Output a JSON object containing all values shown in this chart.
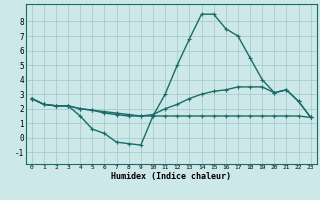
{
  "title": "",
  "xlabel": "Humidex (Indice chaleur)",
  "xlim": [
    -0.5,
    23.5
  ],
  "ylim": [
    -1.8,
    9.2
  ],
  "xticks": [
    0,
    1,
    2,
    3,
    4,
    5,
    6,
    7,
    8,
    9,
    10,
    11,
    12,
    13,
    14,
    15,
    16,
    17,
    18,
    19,
    20,
    21,
    22,
    23
  ],
  "yticks": [
    -1,
    0,
    1,
    2,
    3,
    4,
    5,
    6,
    7,
    8
  ],
  "background_color": "#cce8e8",
  "grid_color": "#aacccc",
  "line_color": "#1a6b6b",
  "line_width": 1.0,
  "marker": "+",
  "markersize": 3.5,
  "lines": [
    {
      "x": [
        0,
        1,
        2,
        3,
        4,
        5,
        6,
        7,
        8,
        9,
        10,
        11,
        12,
        13,
        14,
        15,
        16,
        17,
        18,
        19,
        20,
        21,
        22,
        23
      ],
      "y": [
        2.7,
        2.3,
        2.2,
        2.2,
        1.5,
        0.6,
        0.3,
        -0.3,
        -0.4,
        -0.5,
        1.5,
        3.0,
        5.0,
        6.8,
        8.5,
        8.5,
        7.5,
        7.0,
        5.5,
        4.0,
        3.1,
        3.3,
        2.5,
        1.4
      ]
    },
    {
      "x": [
        0,
        1,
        2,
        3,
        4,
        5,
        6,
        7,
        8,
        9,
        10,
        11,
        12,
        13,
        14,
        15,
        16,
        17,
        18,
        19,
        20,
        21,
        22,
        23
      ],
      "y": [
        2.7,
        2.3,
        2.2,
        2.2,
        2.0,
        1.9,
        1.7,
        1.6,
        1.5,
        1.5,
        1.6,
        2.0,
        2.3,
        2.7,
        3.0,
        3.2,
        3.3,
        3.5,
        3.5,
        3.5,
        3.1,
        3.3,
        2.5,
        1.4
      ]
    },
    {
      "x": [
        0,
        1,
        2,
        3,
        4,
        5,
        6,
        7,
        8,
        9,
        10,
        11,
        12,
        13,
        14,
        15,
        16,
        17,
        18,
        19,
        20,
        21,
        22,
        23
      ],
      "y": [
        2.7,
        2.3,
        2.2,
        2.2,
        2.0,
        1.9,
        1.8,
        1.7,
        1.6,
        1.5,
        1.5,
        1.5,
        1.5,
        1.5,
        1.5,
        1.5,
        1.5,
        1.5,
        1.5,
        1.5,
        1.5,
        1.5,
        1.5,
        1.4
      ]
    }
  ]
}
